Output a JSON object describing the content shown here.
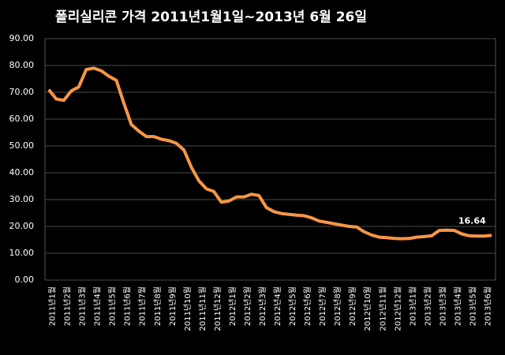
{
  "chart_data": {
    "type": "line",
    "title": "폴리실리콘 가격    2011년1월1일~2013년 6월 26일",
    "categories": [
      "2011년1월",
      null,
      "2011년2월",
      null,
      "2011년3월",
      null,
      "2011년4월",
      null,
      "2011년5월",
      null,
      "2011년6월",
      null,
      "2011년7월",
      null,
      "2011년8월",
      null,
      "2011년9월",
      null,
      "2011년10월",
      null,
      "2011년11월",
      null,
      "2011년12월",
      null,
      "2012년1월",
      null,
      "2012년2월",
      null,
      "2012년3월",
      null,
      "2012년4월",
      null,
      "2012년5월",
      null,
      "2012년6월",
      null,
      "2012년7월",
      null,
      "2012년8월",
      null,
      "2012년9월",
      null,
      "2012년10월",
      null,
      "2012년11월",
      null,
      "2012년12월",
      null,
      "2013년1월",
      null,
      "2013년2월",
      null,
      "2013년3월",
      null,
      "2013년4월",
      null,
      "2013년5월",
      null,
      "2013년6월",
      null
    ],
    "series": [
      {
        "name": "폴리실리콘 가격",
        "color": "#f79646",
        "values": [
          71,
          67.5,
          67,
          70.5,
          72,
          78.5,
          79,
          78,
          76,
          74.5,
          66,
          58,
          55.5,
          53.5,
          53.5,
          52.5,
          52,
          51,
          48.5,
          42,
          37,
          34,
          33,
          29,
          29.5,
          31,
          31,
          32,
          31.5,
          27,
          25.5,
          24.8,
          24.5,
          24.2,
          24,
          23.2,
          22,
          21.5,
          21,
          20.5,
          20,
          19.8,
          18,
          16.8,
          16,
          15.8,
          15.5,
          15.4,
          15.5,
          16,
          16.2,
          16.5,
          18.5,
          18.6,
          18.5,
          17.2,
          16.5,
          16.4,
          16.4,
          16.64
        ]
      }
    ],
    "annotation": "16.64",
    "ylim": [
      0,
      90
    ],
    "yticks": [
      {
        "value": 0,
        "label": "0.00"
      },
      {
        "value": 10,
        "label": "10.00"
      },
      {
        "value": 20,
        "label": "20.00"
      },
      {
        "value": 30,
        "label": "30.00"
      },
      {
        "value": 40,
        "label": "40.00"
      },
      {
        "value": 50,
        "label": "50.00"
      },
      {
        "value": 60,
        "label": "60.00"
      },
      {
        "value": 70,
        "label": "70.00"
      },
      {
        "value": 80,
        "label": "80.00"
      },
      {
        "value": 90,
        "label": "90.00"
      }
    ],
    "grid": true
  }
}
